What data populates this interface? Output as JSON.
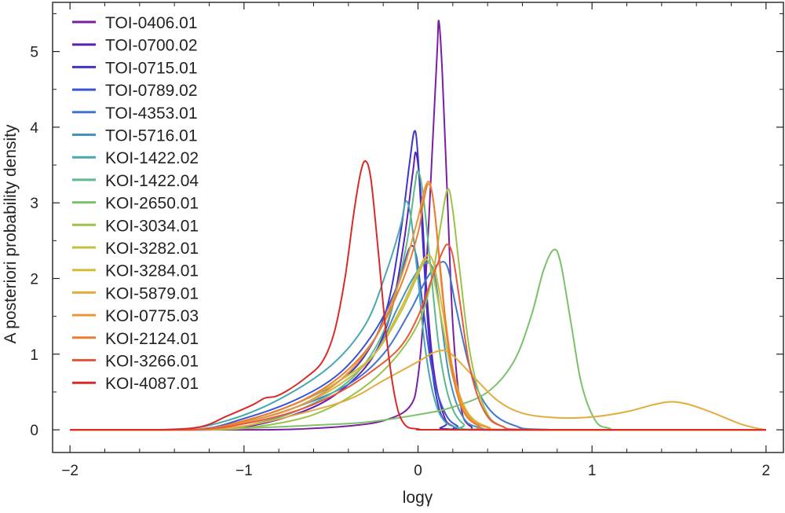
{
  "chart_data": {
    "type": "line",
    "xlabel": "logγ",
    "ylabel": "A posteriori probability density",
    "xlim": [
      -2.1,
      2.1
    ],
    "ylim": [
      -0.3,
      5.65
    ],
    "xticks": [
      -2,
      -1,
      0,
      1,
      2
    ],
    "xtick_labels": [
      "−2",
      "−1",
      "0",
      "1",
      "2"
    ],
    "yticks": [
      0,
      1,
      2,
      3,
      4,
      5
    ],
    "ytick_labels": [
      "0",
      "1",
      "2",
      "3",
      "4",
      "5"
    ],
    "grid": false,
    "legend_position": "top-left",
    "series": [
      {
        "name": "TOI-0406.01",
        "color": "#7b1fa2",
        "points": [
          [
            -2,
            0
          ],
          [
            -0.9,
            0
          ],
          [
            -0.6,
            0.02
          ],
          [
            -0.4,
            0.05
          ],
          [
            -0.2,
            0.12
          ],
          [
            -0.05,
            0.3
          ],
          [
            0.0,
            0.7
          ],
          [
            0.04,
            1.8
          ],
          [
            0.08,
            3.6
          ],
          [
            0.11,
            5.0
          ],
          [
            0.12,
            5.4
          ],
          [
            0.14,
            4.7
          ],
          [
            0.17,
            3.0
          ],
          [
            0.2,
            1.4
          ],
          [
            0.24,
            0.4
          ],
          [
            0.3,
            0.05
          ],
          [
            0.5,
            0
          ],
          [
            2,
            0
          ]
        ]
      },
      {
        "name": "TOI-0700.02",
        "color": "#5e1fb8",
        "points": [
          [
            -2,
            0
          ],
          [
            -1.2,
            0
          ],
          [
            -0.9,
            0.08
          ],
          [
            -0.6,
            0.3
          ],
          [
            -0.4,
            0.6
          ],
          [
            -0.25,
            1.0
          ],
          [
            -0.15,
            1.6
          ],
          [
            -0.08,
            2.5
          ],
          [
            -0.03,
            3.4
          ],
          [
            -0.01,
            3.65
          ],
          [
            0.02,
            3.0
          ],
          [
            0.05,
            1.8
          ],
          [
            0.09,
            0.8
          ],
          [
            0.14,
            0.25
          ],
          [
            0.2,
            0.05
          ],
          [
            0.4,
            0
          ],
          [
            2,
            0
          ]
        ]
      },
      {
        "name": "TOI-0715.01",
        "color": "#3d35c9",
        "points": [
          [
            -2,
            0
          ],
          [
            -1.3,
            0
          ],
          [
            -1.0,
            0.12
          ],
          [
            -0.7,
            0.35
          ],
          [
            -0.45,
            0.65
          ],
          [
            -0.3,
            1.0
          ],
          [
            -0.18,
            1.6
          ],
          [
            -0.1,
            2.6
          ],
          [
            -0.05,
            3.5
          ],
          [
            -0.02,
            3.95
          ],
          [
            0.0,
            3.6
          ],
          [
            0.03,
            2.4
          ],
          [
            0.06,
            1.3
          ],
          [
            0.1,
            0.5
          ],
          [
            0.16,
            0.1
          ],
          [
            0.3,
            0
          ],
          [
            2,
            0
          ]
        ]
      },
      {
        "name": "TOI-0789.02",
        "color": "#3b55d1",
        "points": [
          [
            -2,
            0
          ],
          [
            -1.3,
            0
          ],
          [
            -1.0,
            0.15
          ],
          [
            -0.7,
            0.4
          ],
          [
            -0.45,
            0.75
          ],
          [
            -0.25,
            1.3
          ],
          [
            -0.12,
            1.9
          ],
          [
            -0.05,
            2.4
          ],
          [
            -0.01,
            2.3
          ],
          [
            0.03,
            1.6
          ],
          [
            0.08,
            0.8
          ],
          [
            0.14,
            0.3
          ],
          [
            0.22,
            0.06
          ],
          [
            0.4,
            0
          ],
          [
            2,
            0
          ]
        ]
      },
      {
        "name": "TOI-4353.01",
        "color": "#3f76cf",
        "points": [
          [
            -2,
            0
          ],
          [
            -1.3,
            0
          ],
          [
            -1.0,
            0.1
          ],
          [
            -0.7,
            0.3
          ],
          [
            -0.4,
            0.6
          ],
          [
            -0.2,
            1.0
          ],
          [
            -0.05,
            1.55
          ],
          [
            0.05,
            2.0
          ],
          [
            0.12,
            2.2
          ],
          [
            0.17,
            2.15
          ],
          [
            0.22,
            1.6
          ],
          [
            0.3,
            0.8
          ],
          [
            0.4,
            0.3
          ],
          [
            0.55,
            0.06
          ],
          [
            0.8,
            0
          ],
          [
            2,
            0
          ]
        ]
      },
      {
        "name": "TOI-5716.01",
        "color": "#4392c2",
        "points": [
          [
            -2,
            0
          ],
          [
            -1.3,
            0
          ],
          [
            -1.0,
            0.1
          ],
          [
            -0.7,
            0.3
          ],
          [
            -0.45,
            0.6
          ],
          [
            -0.25,
            1.0
          ],
          [
            -0.12,
            1.6
          ],
          [
            -0.03,
            2.0
          ],
          [
            0.04,
            2.2
          ],
          [
            0.09,
            2.1
          ],
          [
            0.13,
            1.5
          ],
          [
            0.18,
            0.7
          ],
          [
            0.25,
            0.2
          ],
          [
            0.35,
            0.03
          ],
          [
            0.6,
            0
          ],
          [
            2,
            0
          ]
        ]
      },
      {
        "name": "KOI-1422.02",
        "color": "#49a7b0",
        "points": [
          [
            -2,
            0
          ],
          [
            -1.4,
            0
          ],
          [
            -1.1,
            0.12
          ],
          [
            -0.8,
            0.4
          ],
          [
            -0.5,
            0.85
          ],
          [
            -0.3,
            1.4
          ],
          [
            -0.18,
            2.1
          ],
          [
            -0.1,
            2.7
          ],
          [
            -0.07,
            3.02
          ],
          [
            -0.04,
            2.8
          ],
          [
            0.0,
            2.0
          ],
          [
            0.04,
            1.1
          ],
          [
            0.09,
            0.45
          ],
          [
            0.15,
            0.12
          ],
          [
            0.25,
            0.02
          ],
          [
            0.4,
            0
          ],
          [
            2,
            0
          ]
        ]
      },
      {
        "name": "KOI-1422.04",
        "color": "#5bb98e",
        "points": [
          [
            -2,
            0
          ],
          [
            -1.2,
            0
          ],
          [
            -0.9,
            0.1
          ],
          [
            -0.6,
            0.35
          ],
          [
            -0.35,
            0.75
          ],
          [
            -0.18,
            1.4
          ],
          [
            -0.07,
            2.4
          ],
          [
            -0.02,
            3.2
          ],
          [
            0.0,
            3.42
          ],
          [
            0.03,
            3.1
          ],
          [
            0.07,
            2.2
          ],
          [
            0.12,
            1.1
          ],
          [
            0.18,
            0.4
          ],
          [
            0.26,
            0.08
          ],
          [
            0.4,
            0
          ],
          [
            2,
            0
          ]
        ]
      },
      {
        "name": "KOI-2650.01",
        "color": "#7cc06a",
        "points": [
          [
            -2,
            0
          ],
          [
            -1.4,
            0
          ],
          [
            -1.0,
            0.02
          ],
          [
            -0.6,
            0.06
          ],
          [
            -0.3,
            0.1
          ],
          [
            0.0,
            0.2
          ],
          [
            0.2,
            0.3
          ],
          [
            0.4,
            0.5
          ],
          [
            0.55,
            0.9
          ],
          [
            0.65,
            1.5
          ],
          [
            0.72,
            2.1
          ],
          [
            0.78,
            2.38
          ],
          [
            0.82,
            2.2
          ],
          [
            0.88,
            1.4
          ],
          [
            0.94,
            0.6
          ],
          [
            1.02,
            0.12
          ],
          [
            1.1,
            0.02
          ],
          [
            1.2,
            0
          ],
          [
            2,
            0
          ]
        ]
      },
      {
        "name": "KOI-3034.01",
        "color": "#9dc24a",
        "points": [
          [
            -2,
            0
          ],
          [
            -1.2,
            0
          ],
          [
            -0.9,
            0.05
          ],
          [
            -0.6,
            0.2
          ],
          [
            -0.35,
            0.5
          ],
          [
            -0.15,
            0.9
          ],
          [
            0.0,
            1.4
          ],
          [
            0.08,
            2.0
          ],
          [
            0.13,
            2.7
          ],
          [
            0.17,
            3.18
          ],
          [
            0.2,
            2.9
          ],
          [
            0.24,
            2.1
          ],
          [
            0.3,
            1.0
          ],
          [
            0.38,
            0.3
          ],
          [
            0.48,
            0.05
          ],
          [
            0.7,
            0
          ],
          [
            2,
            0
          ]
        ]
      },
      {
        "name": "KOI-3282.01",
        "color": "#c1c03f",
        "points": [
          [
            -2,
            0
          ],
          [
            -1.3,
            0
          ],
          [
            -1.0,
            0.12
          ],
          [
            -0.7,
            0.35
          ],
          [
            -0.45,
            0.65
          ],
          [
            -0.25,
            1.0
          ],
          [
            -0.1,
            1.55
          ],
          [
            0.0,
            2.05
          ],
          [
            0.05,
            2.25
          ],
          [
            0.09,
            2.0
          ],
          [
            0.14,
            1.4
          ],
          [
            0.2,
            0.7
          ],
          [
            0.28,
            0.2
          ],
          [
            0.4,
            0.03
          ],
          [
            0.6,
            0
          ],
          [
            2,
            0
          ]
        ]
      },
      {
        "name": "KOI-3284.01",
        "color": "#d3bb3d",
        "points": [
          [
            -2,
            0
          ],
          [
            -1.3,
            0
          ],
          [
            -1.0,
            0.1
          ],
          [
            -0.7,
            0.3
          ],
          [
            -0.45,
            0.6
          ],
          [
            -0.25,
            1.0
          ],
          [
            -0.1,
            1.6
          ],
          [
            0.0,
            2.1
          ],
          [
            0.05,
            2.3
          ],
          [
            0.09,
            2.2
          ],
          [
            0.14,
            1.6
          ],
          [
            0.2,
            0.8
          ],
          [
            0.28,
            0.25
          ],
          [
            0.4,
            0.04
          ],
          [
            0.6,
            0
          ],
          [
            2,
            0
          ]
        ]
      },
      {
        "name": "KOI-5879.01",
        "color": "#e3ac3e",
        "points": [
          [
            -2,
            0
          ],
          [
            -1.3,
            0
          ],
          [
            -1.0,
            0.05
          ],
          [
            -0.7,
            0.2
          ],
          [
            -0.4,
            0.4
          ],
          [
            -0.2,
            0.65
          ],
          [
            0.0,
            0.9
          ],
          [
            0.1,
            1.03
          ],
          [
            0.18,
            1.02
          ],
          [
            0.3,
            0.75
          ],
          [
            0.45,
            0.4
          ],
          [
            0.6,
            0.22
          ],
          [
            0.8,
            0.16
          ],
          [
            1.0,
            0.17
          ],
          [
            1.2,
            0.24
          ],
          [
            1.35,
            0.33
          ],
          [
            1.45,
            0.37
          ],
          [
            1.55,
            0.34
          ],
          [
            1.7,
            0.22
          ],
          [
            1.85,
            0.08
          ],
          [
            1.95,
            0.02
          ],
          [
            2,
            0
          ]
        ]
      },
      {
        "name": "KOI-0775.03",
        "color": "#ec973a",
        "points": [
          [
            -2,
            0
          ],
          [
            -1.3,
            0
          ],
          [
            -1.0,
            0.1
          ],
          [
            -0.7,
            0.3
          ],
          [
            -0.45,
            0.65
          ],
          [
            -0.25,
            1.2
          ],
          [
            -0.1,
            2.0
          ],
          [
            0.0,
            2.8
          ],
          [
            0.04,
            3.2
          ],
          [
            0.07,
            3.25
          ],
          [
            0.1,
            2.8
          ],
          [
            0.14,
            1.8
          ],
          [
            0.2,
            0.8
          ],
          [
            0.28,
            0.22
          ],
          [
            0.4,
            0.03
          ],
          [
            0.6,
            0
          ],
          [
            2,
            0
          ]
        ]
      },
      {
        "name": "KOI-2124.01",
        "color": "#ee7b34",
        "points": [
          [
            -2,
            0
          ],
          [
            -1.3,
            0
          ],
          [
            -1.0,
            0.12
          ],
          [
            -0.7,
            0.35
          ],
          [
            -0.45,
            0.7
          ],
          [
            -0.25,
            1.2
          ],
          [
            -0.1,
            1.9
          ],
          [
            0.0,
            2.6
          ],
          [
            0.03,
            3.0
          ],
          [
            0.06,
            3.25
          ],
          [
            0.09,
            3.0
          ],
          [
            0.13,
            2.1
          ],
          [
            0.18,
            1.0
          ],
          [
            0.25,
            0.3
          ],
          [
            0.35,
            0.05
          ],
          [
            0.5,
            0
          ],
          [
            2,
            0
          ]
        ]
      },
      {
        "name": "KOI-3266.01",
        "color": "#e8583a",
        "points": [
          [
            -2,
            0
          ],
          [
            -1.3,
            0
          ],
          [
            -1.0,
            0.08
          ],
          [
            -0.7,
            0.25
          ],
          [
            -0.45,
            0.5
          ],
          [
            -0.25,
            0.8
          ],
          [
            -0.1,
            1.1
          ],
          [
            0.0,
            1.5
          ],
          [
            0.08,
            2.0
          ],
          [
            0.14,
            2.35
          ],
          [
            0.17,
            2.45
          ],
          [
            0.2,
            2.3
          ],
          [
            0.24,
            1.7
          ],
          [
            0.3,
            0.8
          ],
          [
            0.38,
            0.25
          ],
          [
            0.48,
            0.05
          ],
          [
            0.7,
            0
          ],
          [
            2,
            0
          ]
        ]
      },
      {
        "name": "KOI-4087.01",
        "color": "#d92a2a",
        "points": [
          [
            -2,
            0
          ],
          [
            -1.5,
            0
          ],
          [
            -1.25,
            0.04
          ],
          [
            -1.1,
            0.18
          ],
          [
            -0.95,
            0.33
          ],
          [
            -0.88,
            0.42
          ],
          [
            -0.82,
            0.44
          ],
          [
            -0.75,
            0.52
          ],
          [
            -0.65,
            0.68
          ],
          [
            -0.55,
            0.9
          ],
          [
            -0.48,
            1.3
          ],
          [
            -0.42,
            2.0
          ],
          [
            -0.37,
            2.85
          ],
          [
            -0.33,
            3.4
          ],
          [
            -0.3,
            3.55
          ],
          [
            -0.27,
            3.3
          ],
          [
            -0.23,
            2.4
          ],
          [
            -0.18,
            1.2
          ],
          [
            -0.13,
            0.4
          ],
          [
            -0.08,
            0.08
          ],
          [
            0.0,
            0.01
          ],
          [
            0.2,
            0
          ],
          [
            2,
            0
          ]
        ]
      }
    ]
  }
}
